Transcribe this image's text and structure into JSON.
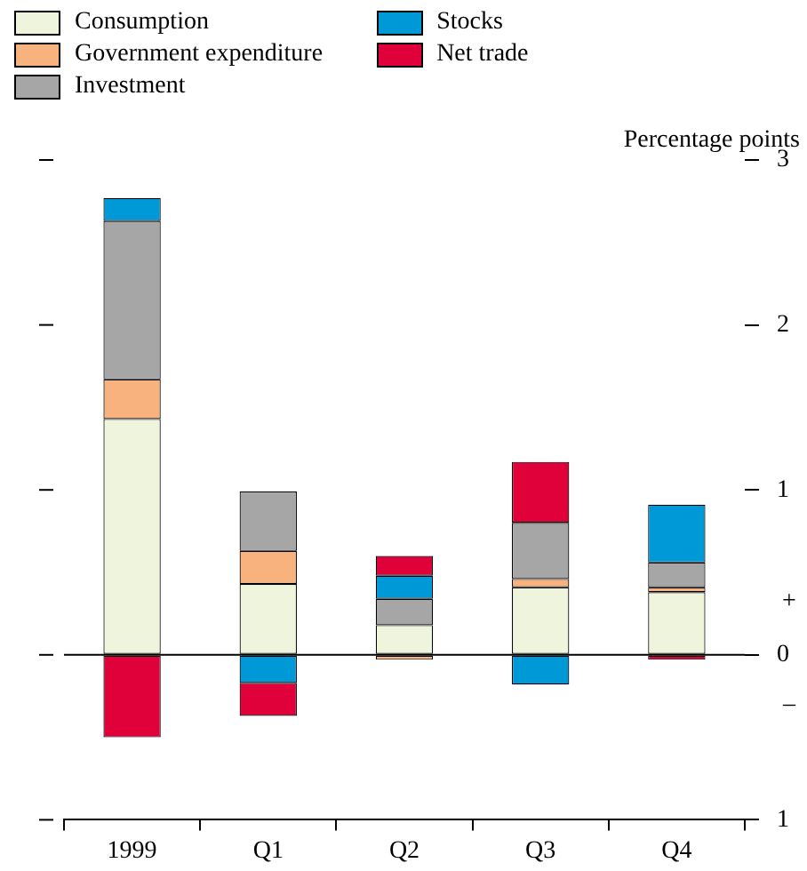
{
  "chart_data": {
    "type": "bar",
    "stacked": true,
    "categories": [
      "1999",
      "Q1",
      "Q2",
      "Q3",
      "Q4"
    ],
    "series": [
      {
        "name": "Consumption",
        "color": "#eef5dc",
        "values": [
          1.43,
          0.43,
          0.18,
          0.41,
          0.38
        ]
      },
      {
        "name": "Government expenditure",
        "color": "#f7b27e",
        "values": [
          0.24,
          0.2,
          -0.03,
          0.05,
          0.03
        ]
      },
      {
        "name": "Investment",
        "color": "#a6a6a6",
        "values": [
          0.96,
          0.36,
          0.16,
          0.34,
          0.15
        ]
      },
      {
        "name": "Stocks",
        "color": "#0099d8",
        "values": [
          0.14,
          -0.17,
          0.14,
          -0.18,
          0.35
        ]
      },
      {
        "name": "Net trade",
        "color": "#e0003a",
        "values": [
          -0.5,
          -0.2,
          0.12,
          0.37,
          -0.03
        ]
      }
    ],
    "ylabel": "Percentage points",
    "ylim": [
      -1,
      3
    ],
    "yticks": [
      {
        "value": -1,
        "label": "1"
      },
      {
        "value": 0,
        "label": "0"
      },
      1,
      2,
      3
    ],
    "ref_lines": [
      {
        "axis": "y",
        "value": 0
      }
    ],
    "annotations": [
      "+",
      "–"
    ],
    "legend": "top left",
    "grid": false
  }
}
